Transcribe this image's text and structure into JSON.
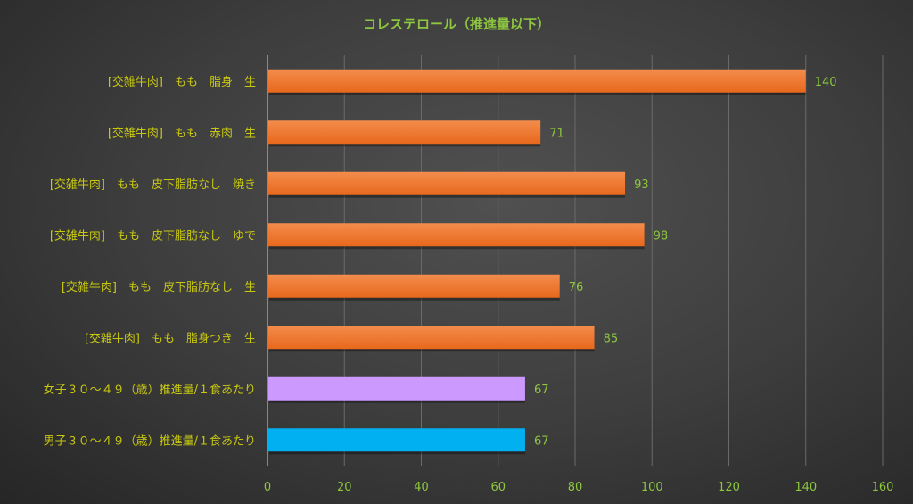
{
  "chart_data": {
    "type": "bar",
    "orientation": "horizontal",
    "title": "コレステロール（推進量以下）",
    "categories": [
      "[交雑牛肉]　もも　脂身　生",
      "[交雑牛肉]　もも　赤肉　生",
      "[交雑牛肉]　もも　皮下脂肪なし　焼き",
      "[交雑牛肉]　もも　皮下脂肪なし　ゆで",
      "[交雑牛肉]　もも　皮下脂肪なし　生",
      "[交雑牛肉]　もも　脂身つき　生",
      "女子３０～４９（歳）推進量/１食あたり",
      "男子３０～４９（歳）推進量/１食あたり"
    ],
    "values": [
      140,
      71,
      93,
      98,
      76,
      85,
      67,
      67
    ],
    "bar_colors": [
      "#f07a2a",
      "#f07a2a",
      "#f07a2a",
      "#f07a2a",
      "#f07a2a",
      "#f07a2a",
      "#cc99ff",
      "#00b0f0"
    ],
    "xlim": [
      0,
      160
    ],
    "xticks": [
      0,
      20,
      40,
      60,
      80,
      100,
      120,
      140,
      160
    ],
    "grid": true,
    "xlabel": "",
    "ylabel": "",
    "colors": {
      "title": "#8dc63f",
      "category_label": "#c8c810",
      "value_label": "#8dc63f",
      "tick_label": "#8dc63f"
    }
  }
}
